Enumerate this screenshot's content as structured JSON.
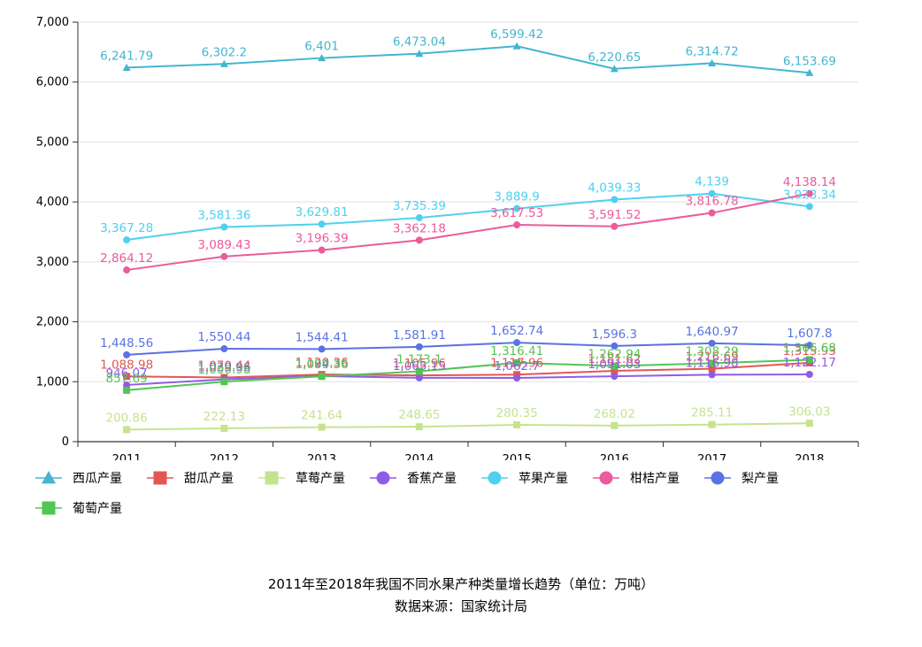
{
  "chart_data": {
    "type": "line",
    "title": "2011年至2018年我国不同水果产种类量增长趋势（单位：万吨）",
    "subtitle": "数据来源：国家统计局",
    "xlabel": "",
    "ylabel": "",
    "categories": [
      "2011",
      "2012",
      "2013",
      "2014",
      "2015",
      "2016",
      "2017",
      "2018"
    ],
    "ylim": [
      0,
      7000
    ],
    "yticks": [
      0,
      1000,
      2000,
      3000,
      4000,
      5000,
      6000,
      7000
    ],
    "ytick_labels": [
      "0",
      "1,000",
      "2,000",
      "3,000",
      "4,000",
      "5,000",
      "6,000",
      "7,000"
    ],
    "grid": true,
    "legend_position": "bottom-left",
    "series": [
      {
        "name": "西瓜产量",
        "color": "#44b5d2",
        "marker": "triangle",
        "values": [
          6241.79,
          6302.2,
          6401,
          6473.04,
          6599.42,
          6220.65,
          6314.72,
          6153.69
        ],
        "labels": [
          "6,241.79",
          "6,302.2",
          "6,401",
          "6,473.04",
          "6,599.42",
          "6,220.65",
          "6,314.72",
          "6,153.69"
        ]
      },
      {
        "name": "甜瓜产量",
        "color": "#e35656",
        "marker": "square",
        "values": [
          1088.98,
          1070.44,
          1120.36,
          1105.96,
          1117.96,
          1181.62,
          1216.69,
          1315.93
        ],
        "labels": [
          "1,088.98",
          "1,070.44",
          "1,120.36",
          "1,105.96",
          "1,117.96",
          "1,181.62",
          "1,216.69",
          "1,315.93"
        ]
      },
      {
        "name": "草莓产量",
        "color": "#c5e38f",
        "marker": "square",
        "values": [
          200.86,
          222.13,
          241.64,
          248.65,
          280.35,
          268.02,
          285.11,
          306.03
        ],
        "labels": [
          "200.86",
          "222.13",
          "241.64",
          "248.65",
          "280.35",
          "268.02",
          "285.11",
          "306.03"
        ]
      },
      {
        "name": "香蕉产量",
        "color": "#8e5ce8",
        "marker": "circle",
        "values": [
          946.07,
          1039.96,
          1094.36,
          1065.15,
          1062.7,
          1091.03,
          1116.98,
          1122.17
        ],
        "labels": [
          "946.07",
          "1,039.96",
          "1,094.36",
          "1,065.15",
          "1,062.7",
          "1,091.03",
          "1,116.98",
          "1,122.17"
        ]
      },
      {
        "name": "苹果产量",
        "color": "#4fd0ef",
        "marker": "circle",
        "values": [
          3367.28,
          3581.36,
          3629.81,
          3735.39,
          3889.9,
          4039.33,
          4139,
          3923.34
        ],
        "labels": [
          "3,367.28",
          "3,581.36",
          "3,629.81",
          "3,735.39",
          "3,889.9",
          "4,039.33",
          "4,139",
          "3,923.34"
        ]
      },
      {
        "name": "柑桔产量",
        "color": "#ec5b9b",
        "marker": "circle",
        "values": [
          2864.12,
          3089.43,
          3196.39,
          3362.18,
          3617.53,
          3591.52,
          3816.78,
          4138.14
        ],
        "labels": [
          "2,864.12",
          "3,089.43",
          "3,196.39",
          "3,362.18",
          "3,617.53",
          "3,591.52",
          "3,816.78",
          "4,138.14"
        ]
      },
      {
        "name": "梨产量",
        "color": "#5a72e3",
        "marker": "circle",
        "values": [
          1448.56,
          1550.44,
          1544.41,
          1581.91,
          1652.74,
          1596.3,
          1640.97,
          1607.8
        ],
        "labels": [
          "1,448.56",
          "1,550.44",
          "1,544.41",
          "1,581.91",
          "1,652.74",
          "1,596.3",
          "1,640.97",
          "1,607.8"
        ]
      },
      {
        "name": "葡萄产量",
        "color": "#52c553",
        "marker": "square",
        "values": [
          857.69,
          1000.98,
          1089.36,
          1173.1,
          1316.41,
          1262.94,
          1308.29,
          1366.68
        ],
        "labels": [
          "857.69",
          "1,000.98",
          "1,089.36",
          "1,173.1",
          "1,316.41",
          "1,262.94",
          "1,308.29",
          "1,366.68"
        ]
      }
    ]
  }
}
